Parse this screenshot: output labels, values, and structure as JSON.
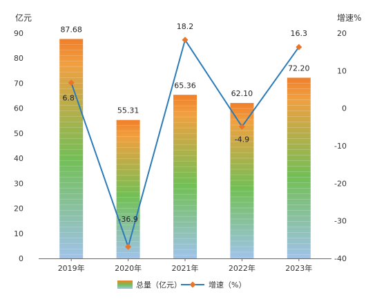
{
  "chart_data": {
    "type": "bar+line",
    "categories": [
      "2019年",
      "2020年",
      "2021年",
      "2022年",
      "2023年"
    ],
    "series": [
      {
        "name": "总量（亿元）",
        "type": "bar",
        "axis": "left",
        "values": [
          87.68,
          55.31,
          65.36,
          62.1,
          72.2
        ],
        "labels": [
          "87.68",
          "55.31",
          "65.36",
          "62.10",
          "72.20"
        ]
      },
      {
        "name": "增速（%）",
        "type": "line",
        "axis": "right",
        "values": [
          6.8,
          -36.9,
          18.2,
          -4.9,
          16.3
        ],
        "labels": [
          "6.8",
          "-36.9",
          "18.2",
          "-4.9",
          "16.3"
        ]
      }
    ],
    "left_axis": {
      "label": "亿元",
      "range": [
        0,
        90
      ],
      "ticks": [
        "0",
        "10",
        "20",
        "30",
        "40",
        "50",
        "60",
        "70",
        "80",
        "90"
      ]
    },
    "right_axis": {
      "label": "增速%",
      "range": [
        -40,
        20
      ],
      "ticks": [
        "20",
        "10",
        "0",
        "-10",
        "-20",
        "-30",
        "-40"
      ]
    },
    "legend": {
      "position": "bottom",
      "items": [
        "总量（亿元）",
        "增速（%）"
      ]
    },
    "colors": {
      "bar_gradient_top": "#f07f2a",
      "bar_gradient_mid": "#72bf55",
      "bar_gradient_bottom": "#9fc3ea",
      "line": "#2a7ab8",
      "marker": "#e8752a"
    },
    "grid": false
  }
}
